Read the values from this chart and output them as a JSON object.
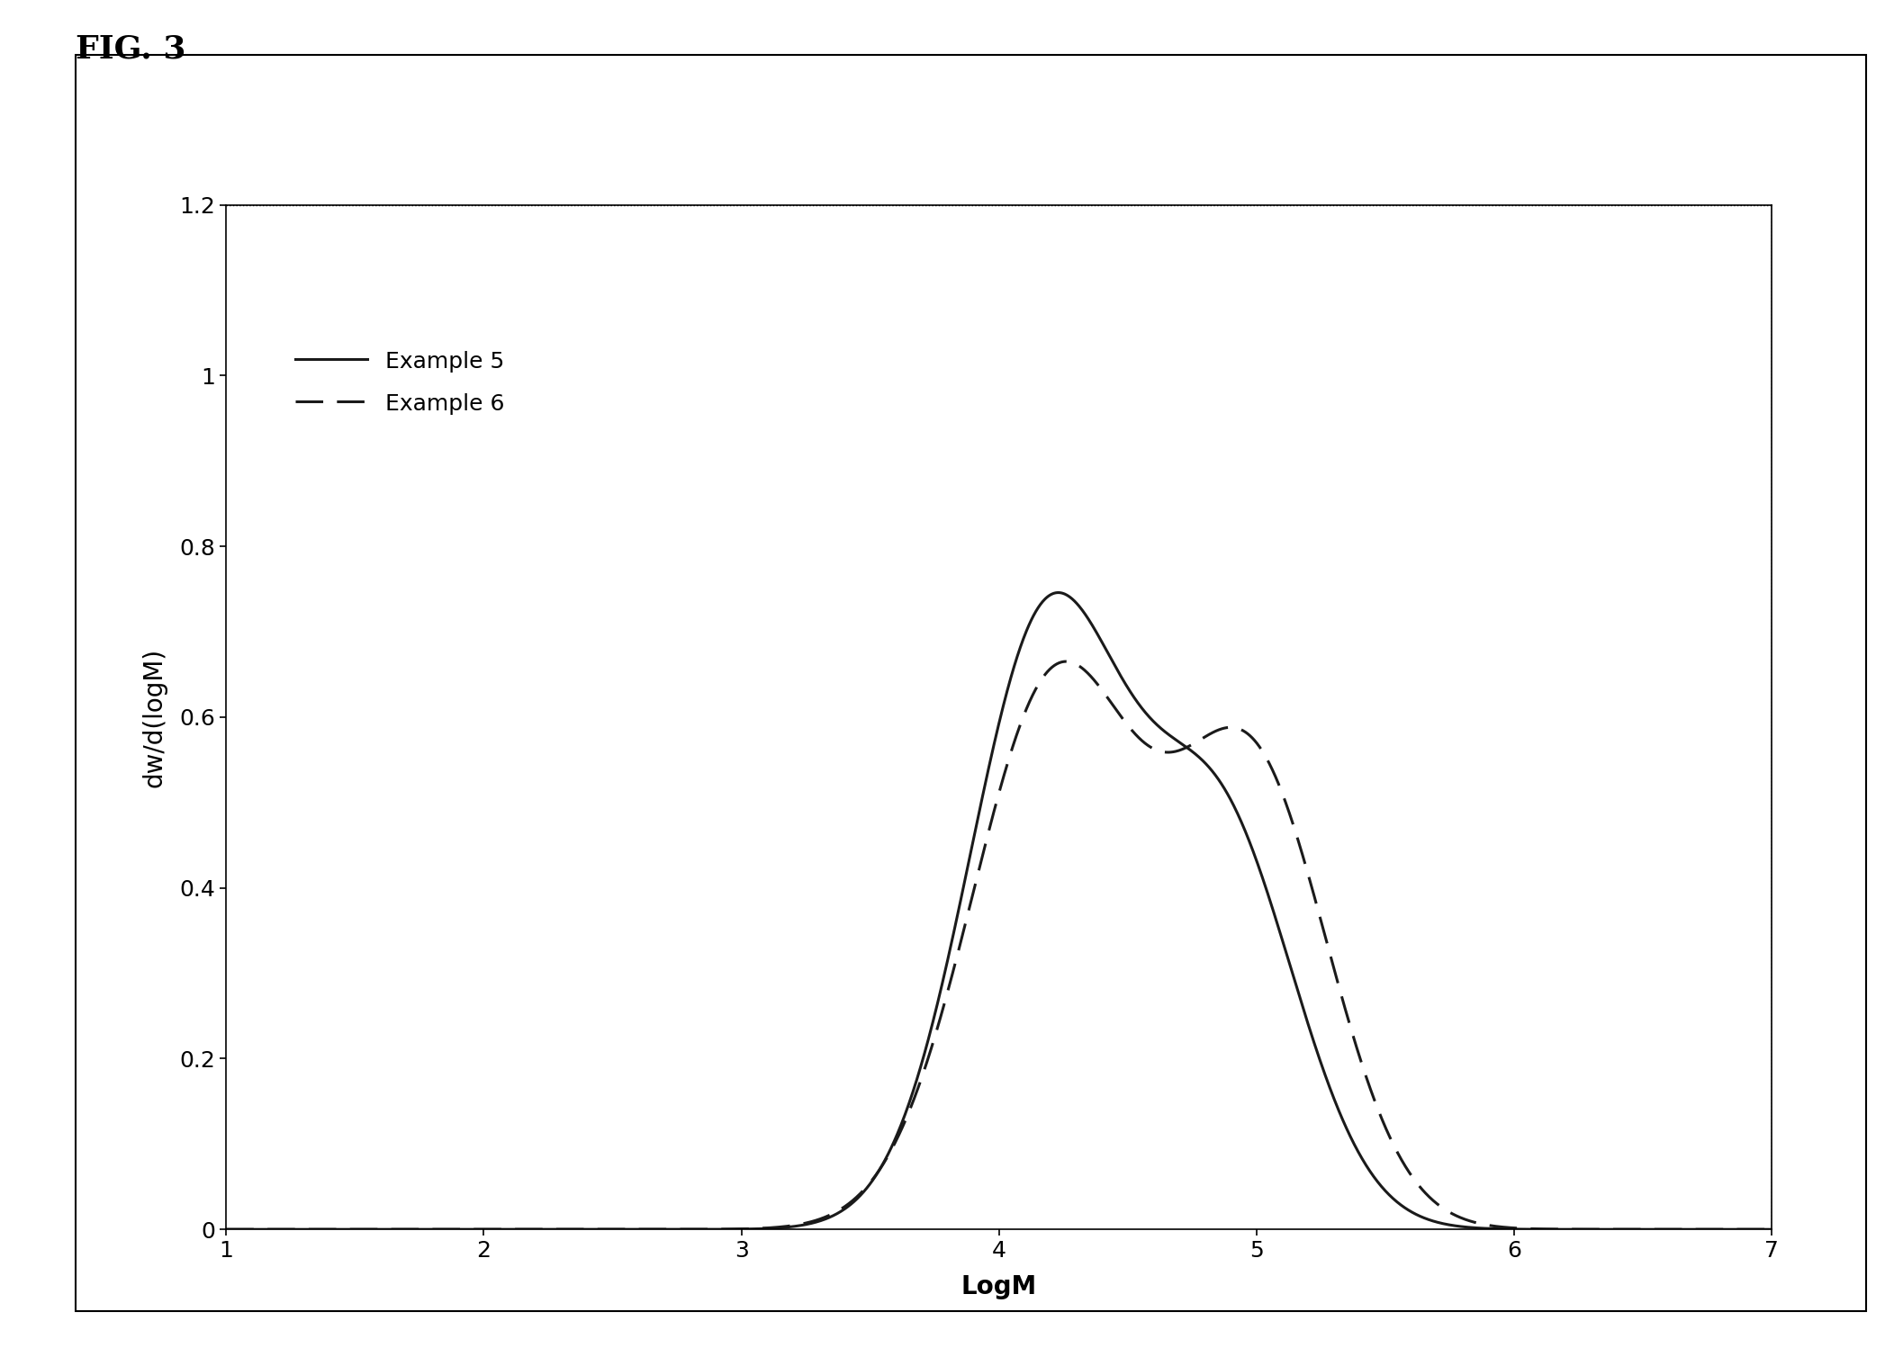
{
  "title": "FIG. 3",
  "xlabel": "LogM",
  "ylabel": "dw/d(logM)",
  "xlim": [
    1,
    7
  ],
  "ylim": [
    0,
    1.2
  ],
  "xticks": [
    1,
    2,
    3,
    4,
    5,
    6,
    7
  ],
  "yticks": [
    0,
    0.2,
    0.4,
    0.6,
    0.8,
    1,
    1.2
  ],
  "legend": [
    "Example 5",
    "Example 6"
  ],
  "line_color": "#1a1a1a",
  "background_color": "#ffffff",
  "fig_width": 20.94,
  "fig_height": 15.18,
  "dpi": 100,
  "ex5_params": [
    4.18,
    0.3,
    0.7,
    4.85,
    0.3,
    0.47
  ],
  "ex6_params": [
    4.22,
    0.325,
    0.64,
    4.98,
    0.3,
    0.535
  ]
}
